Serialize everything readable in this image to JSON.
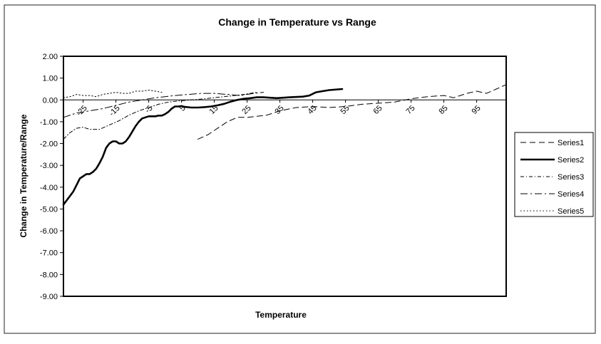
{
  "chart_data": {
    "type": "line",
    "title": "Change in Temperature vs Range",
    "xlabel": "Temperature",
    "ylabel": "Change in Temperature/Range",
    "x_ticks": [
      "-25",
      "-15",
      "-5",
      "5",
      "15",
      "25",
      "35",
      "45",
      "55",
      "65",
      "75",
      "85",
      "95"
    ],
    "xlim": [
      -31,
      104
    ],
    "ylim": [
      -9,
      2
    ],
    "y_ticks": [
      "2.00",
      "1.00",
      "0.00",
      "-1.00",
      "-2.00",
      "-3.00",
      "-4.00",
      "-5.00",
      "-6.00",
      "-7.00",
      "-8.00",
      "-9.00"
    ],
    "grid": false,
    "legend_position": "right",
    "series": [
      {
        "name": "Series1",
        "dash": "8,5",
        "width": 1,
        "x": [
          10,
          13,
          16,
          19,
          22,
          25,
          28,
          31,
          35,
          40,
          45,
          50,
          55,
          60,
          65,
          70,
          75,
          80,
          85,
          88,
          92,
          95,
          98,
          101,
          104
        ],
        "y": [
          -1.8,
          -1.6,
          -1.3,
          -1.0,
          -0.8,
          -0.8,
          -0.75,
          -0.7,
          -0.5,
          -0.35,
          -0.3,
          -0.35,
          -0.3,
          -0.2,
          -0.15,
          -0.1,
          0.05,
          0.15,
          0.2,
          0.1,
          0.3,
          0.4,
          0.3,
          0.5,
          0.7
        ]
      },
      {
        "name": "Series2",
        "dash": "",
        "width": 2.6,
        "x": [
          -31,
          -29,
          -28,
          -27,
          -26,
          -25,
          -24,
          -23,
          -22,
          -21,
          -20,
          -19,
          -18,
          -17,
          -16,
          -15,
          -14,
          -13,
          -12,
          -11,
          -10,
          -9,
          -8,
          -7,
          -6,
          -5,
          -4,
          -3,
          -2,
          -1,
          0,
          1,
          2,
          3,
          4,
          5,
          6,
          8,
          10,
          12,
          14,
          16,
          18,
          20,
          22,
          24,
          26,
          28,
          30,
          34,
          38,
          42,
          44,
          46,
          48,
          50,
          54
        ],
        "y": [
          -4.8,
          -4.4,
          -4.2,
          -3.9,
          -3.6,
          -3.5,
          -3.4,
          -3.4,
          -3.3,
          -3.15,
          -2.9,
          -2.6,
          -2.2,
          -2.0,
          -1.9,
          -1.9,
          -2.0,
          -2.0,
          -1.9,
          -1.7,
          -1.45,
          -1.2,
          -1.0,
          -0.85,
          -0.8,
          -0.75,
          -0.75,
          -0.75,
          -0.72,
          -0.72,
          -0.65,
          -0.55,
          -0.4,
          -0.3,
          -0.3,
          -0.28,
          -0.32,
          -0.35,
          -0.35,
          -0.33,
          -0.3,
          -0.25,
          -0.18,
          -0.08,
          0.0,
          0.05,
          0.08,
          0.12,
          0.12,
          0.08,
          0.12,
          0.15,
          0.2,
          0.35,
          0.4,
          0.45,
          0.5
        ]
      },
      {
        "name": "Series3",
        "dash": "5,3,1,3",
        "width": 1,
        "x": [
          -31,
          -29,
          -27,
          -25,
          -23,
          -20,
          -17,
          -14,
          -11,
          -8,
          -5,
          -2,
          1,
          4,
          8,
          12,
          16,
          20,
          24,
          28
        ],
        "y": [
          -1.8,
          -1.5,
          -1.3,
          -1.25,
          -1.35,
          -1.35,
          -1.15,
          -0.95,
          -0.7,
          -0.5,
          -0.35,
          -0.2,
          -0.1,
          -0.05,
          0.0,
          0.05,
          0.12,
          0.18,
          0.25,
          0.35
        ]
      },
      {
        "name": "Series4",
        "dash": "10,4,2,4",
        "width": 1,
        "x": [
          -31,
          -27,
          -23,
          -19,
          -15,
          -11,
          -7,
          -3,
          0,
          3,
          7,
          11,
          15,
          19,
          23,
          27,
          30
        ],
        "y": [
          -0.8,
          -0.6,
          -0.5,
          -0.4,
          -0.25,
          -0.1,
          0.0,
          0.1,
          0.15,
          0.2,
          0.25,
          0.3,
          0.3,
          0.25,
          0.2,
          0.3,
          0.35
        ]
      },
      {
        "name": "Series5",
        "dash": "1.5,3",
        "width": 1,
        "x": [
          -31,
          -29,
          -27,
          -25,
          -23,
          -21,
          -19,
          -17,
          -15,
          -13,
          -11,
          -9,
          -7,
          -5,
          -3,
          -1
        ],
        "y": [
          0.1,
          0.15,
          0.25,
          0.2,
          0.2,
          0.15,
          0.25,
          0.3,
          0.35,
          0.3,
          0.3,
          0.4,
          0.4,
          0.45,
          0.4,
          0.35
        ]
      }
    ]
  }
}
